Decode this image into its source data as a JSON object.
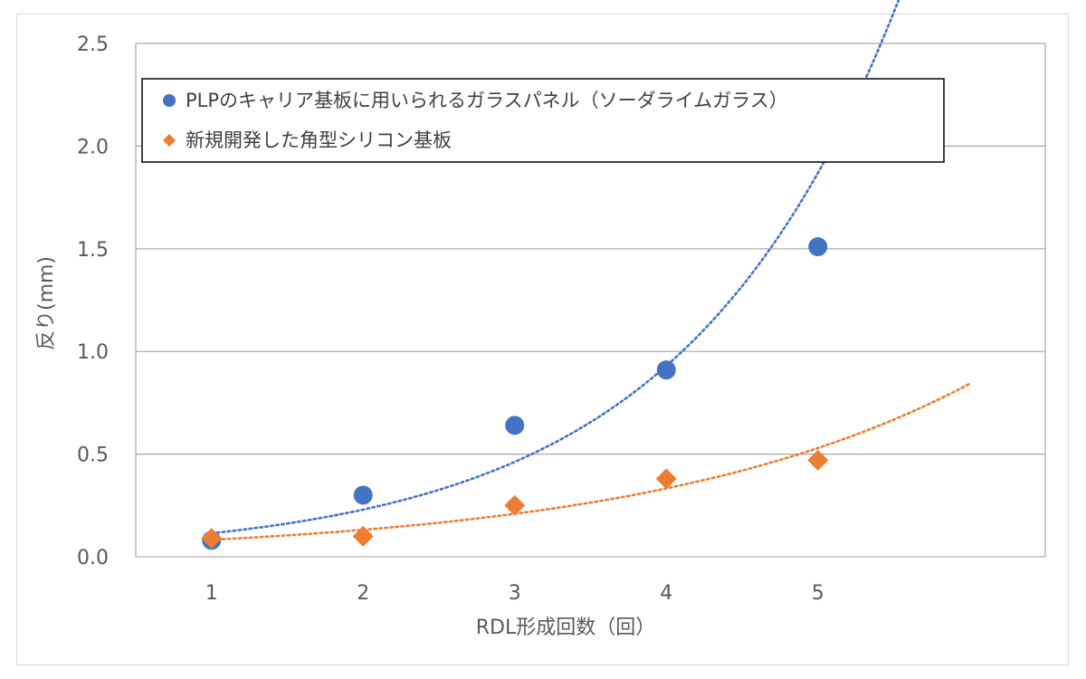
{
  "chart_data": {
    "type": "scatter",
    "title": "",
    "xlabel": "RDL形成回数（回）",
    "ylabel": "反り(mm)",
    "xlim": [
      0.5,
      6.5
    ],
    "ylim": [
      0,
      2.5
    ],
    "x_ticks": [
      "1",
      "2",
      "3",
      "4",
      "5"
    ],
    "y_ticks": [
      "0.0",
      "0.5",
      "1.0",
      "1.5",
      "2.0",
      "2.5"
    ],
    "grid": true,
    "legend_position": "top-left",
    "series": [
      {
        "name": "PLPのキャリア基板に用いられるガラスパネル（ソーダライムガラス）",
        "marker": "circle",
        "color": "#4472C4",
        "x": [
          1,
          2,
          3,
          4,
          5
        ],
        "values": [
          0.08,
          0.3,
          0.64,
          0.91,
          1.51
        ],
        "trendline": "exponential, dotted, extends to x=6"
      },
      {
        "name": "新規開発した角型シリコン基板",
        "marker": "diamond",
        "color": "#ED7D31",
        "x": [
          1,
          2,
          3,
          4,
          5
        ],
        "values": [
          0.09,
          0.1,
          0.25,
          0.38,
          0.47
        ],
        "trendline": "exponential, dotted, extends to x=6"
      }
    ]
  }
}
